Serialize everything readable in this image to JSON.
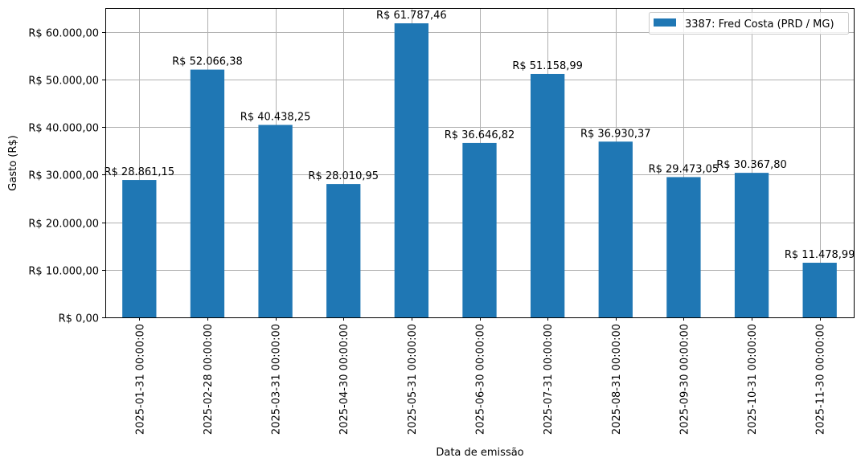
{
  "chart_data": {
    "type": "bar",
    "title": "",
    "xlabel": "Data de emissão",
    "ylabel": "Gasto (R$)",
    "ylim": [
      0,
      65000
    ],
    "grid": true,
    "legend_position": "upper right",
    "categories": [
      "2025-01-31 00:00:00",
      "2025-02-28 00:00:00",
      "2025-03-31 00:00:00",
      "2025-04-30 00:00:00",
      "2025-05-31 00:00:00",
      "2025-06-30 00:00:00",
      "2025-07-31 00:00:00",
      "2025-08-31 00:00:00",
      "2025-09-30 00:00:00",
      "2025-10-31 00:00:00",
      "2025-11-30 00:00:00"
    ],
    "series": [
      {
        "name": "3387: Fred Costa (PRD / MG)",
        "color": "#1f77b4",
        "values": [
          28861.15,
          52066.38,
          40438.25,
          28010.95,
          61787.46,
          36646.82,
          51158.99,
          36930.37,
          29473.05,
          30367.8,
          11478.99
        ],
        "labels": [
          "R$ 28.861,15",
          "R$ 52.066,38",
          "R$ 40.438,25",
          "R$ 28.010,95",
          "R$ 61.787,46",
          "R$ 36.646,82",
          "R$ 51.158,99",
          "R$ 36.930,37",
          "R$ 29.473,05",
          "R$ 30.367,80",
          "R$ 11.478,99"
        ]
      }
    ],
    "yticks": [
      {
        "value": 0,
        "label": "R$ 0,00"
      },
      {
        "value": 10000,
        "label": "R$ 10.000,00"
      },
      {
        "value": 20000,
        "label": "R$ 20.000,00"
      },
      {
        "value": 30000,
        "label": "R$ 30.000,00"
      },
      {
        "value": 40000,
        "label": "R$ 40.000,00"
      },
      {
        "value": 50000,
        "label": "R$ 50.000,00"
      },
      {
        "value": 60000,
        "label": "R$ 60.000,00"
      }
    ]
  },
  "colors": {
    "bar": "#1f77b4",
    "grid": "#b0b0b0",
    "axis": "#000000"
  }
}
